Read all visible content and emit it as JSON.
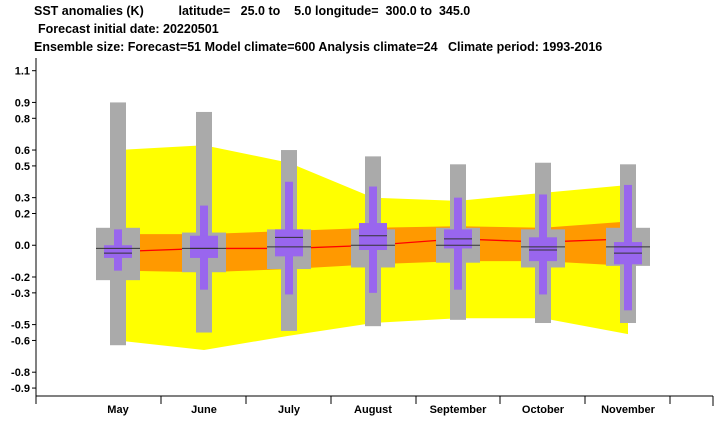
{
  "header": {
    "line1": "SST anomalies (K)          latitude=   25.0 to    5.0 longitude=  300.0 to  345.0",
    "line2": "Forecast initial date: 20220501",
    "line3": "Ensemble size: Forecast=51 Model climate=600 Analysis climate=24   Climate period: 1993-2016"
  },
  "colors": {
    "outer_band": "#ffff00",
    "inner_band": "#ff9900",
    "median_line": "#ff0000",
    "model_box": "#aaaaaa",
    "forecast_box": "#9966ee",
    "axis": "#000000"
  },
  "chart_data": {
    "type": "box",
    "title": "SST anomalies (K)",
    "xlabel": "",
    "ylabel": "",
    "ylim": [
      -0.95,
      1.18
    ],
    "yticks": [
      1.1,
      0.9,
      0.8,
      0.6,
      0.5,
      0.3,
      0.2,
      0.0,
      -0.2,
      -0.3,
      -0.5,
      -0.6,
      -0.8,
      -0.9
    ],
    "ytick_labels": [
      "1.1",
      "0.9",
      "0.8",
      "0.6",
      "0.5",
      "0.3",
      "0.2",
      "0.0",
      "-0.2",
      "-0.3",
      "-0.5",
      "-0.6",
      "-0.8",
      "-0.9"
    ],
    "categories": [
      "May",
      "June",
      "July",
      "August",
      "September",
      "October",
      "November"
    ],
    "outer_band": {
      "upper": [
        0.6,
        0.63,
        0.52,
        0.3,
        0.28,
        0.33,
        0.38
      ],
      "lower": [
        -0.6,
        -0.66,
        -0.57,
        -0.49,
        -0.46,
        -0.46,
        -0.56
      ]
    },
    "inner_band": {
      "upper": [
        0.07,
        0.07,
        0.09,
        0.11,
        0.12,
        0.11,
        0.15
      ],
      "lower": [
        -0.16,
        -0.17,
        -0.15,
        -0.12,
        -0.1,
        -0.1,
        -0.13
      ]
    },
    "median_line": [
      -0.04,
      -0.02,
      -0.02,
      0.0,
      0.04,
      0.02,
      0.04
    ],
    "model_climate": [
      {
        "min": -0.63,
        "q1": -0.22,
        "median": -0.02,
        "q3": 0.11,
        "max": 0.9
      },
      {
        "min": -0.55,
        "q1": -0.17,
        "median": -0.02,
        "q3": 0.08,
        "max": 0.84
      },
      {
        "min": -0.54,
        "q1": -0.15,
        "median": -0.01,
        "q3": 0.1,
        "max": 0.6
      },
      {
        "min": -0.51,
        "q1": -0.14,
        "median": 0.0,
        "q3": 0.1,
        "max": 0.56
      },
      {
        "min": -0.47,
        "q1": -0.11,
        "median": 0.0,
        "q3": 0.11,
        "max": 0.51
      },
      {
        "min": -0.49,
        "q1": -0.14,
        "median": -0.01,
        "q3": 0.1,
        "max": 0.52
      },
      {
        "min": -0.49,
        "q1": -0.13,
        "median": -0.01,
        "q3": 0.11,
        "max": 0.51
      }
    ],
    "forecast": [
      {
        "min": -0.16,
        "q1": -0.08,
        "median": -0.05,
        "q3": 0.0,
        "max": 0.1
      },
      {
        "min": -0.28,
        "q1": -0.08,
        "median": -0.02,
        "q3": 0.06,
        "max": 0.25
      },
      {
        "min": -0.31,
        "q1": -0.07,
        "median": 0.05,
        "q3": 0.1,
        "max": 0.4
      },
      {
        "min": -0.3,
        "q1": -0.03,
        "median": 0.06,
        "q3": 0.14,
        "max": 0.37
      },
      {
        "min": -0.28,
        "q1": -0.02,
        "median": 0.04,
        "q3": 0.1,
        "max": 0.3
      },
      {
        "min": -0.31,
        "q1": -0.1,
        "median": -0.03,
        "q3": 0.05,
        "max": 0.32
      },
      {
        "min": -0.41,
        "q1": -0.12,
        "median": -0.05,
        "q3": 0.02,
        "max": 0.38
      }
    ]
  }
}
